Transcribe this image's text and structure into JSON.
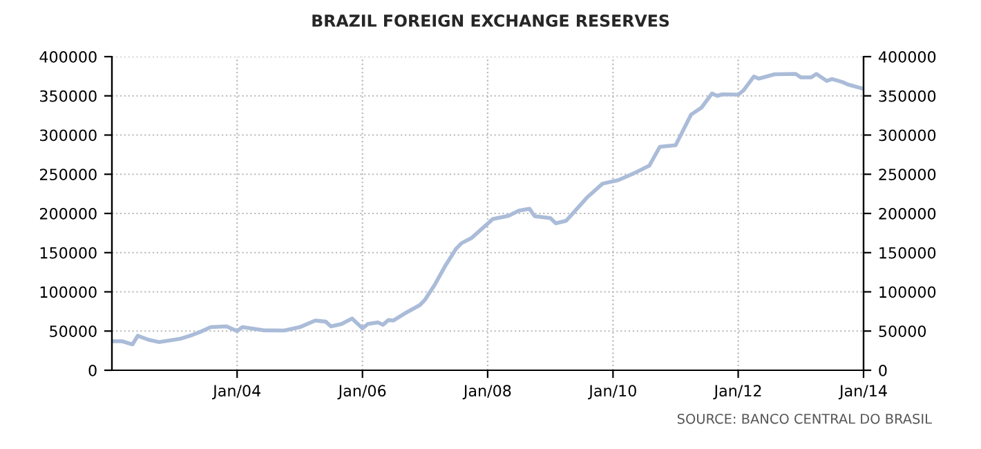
{
  "chart_data": {
    "type": "line",
    "title": "BRAZIL FOREIGN EXCHANGE RESERVES",
    "annotations": [
      "SOURCE: BANCO CENTRAL DO BRASIL"
    ],
    "x": [
      "2002-01",
      "2002-03",
      "2002-05",
      "2002-06",
      "2002-08",
      "2002-10",
      "2003-02",
      "2003-04",
      "2003-06",
      "2003-08",
      "2003-11",
      "2004-01",
      "2004-02",
      "2004-06",
      "2004-10",
      "2005-01",
      "2005-04",
      "2005-06",
      "2005-07",
      "2005-09",
      "2005-11",
      "2006-01",
      "2006-02",
      "2006-04",
      "2006-05",
      "2006-06",
      "2006-07",
      "2006-09",
      "2006-12",
      "2007-01",
      "2007-03",
      "2007-05",
      "2007-07",
      "2007-08",
      "2007-10",
      "2007-12",
      "2008-02",
      "2008-05",
      "2008-07",
      "2008-09",
      "2008-10",
      "2009-01",
      "2009-02",
      "2009-04",
      "2009-05",
      "2009-08",
      "2009-11",
      "2010-02",
      "2010-05",
      "2010-08",
      "2010-10",
      "2011-01",
      "2011-04",
      "2011-06",
      "2011-08",
      "2011-09",
      "2011-10",
      "2012-01",
      "2012-02",
      "2012-04",
      "2012-05",
      "2012-08",
      "2012-12",
      "2013-01",
      "2013-03",
      "2013-04",
      "2013-06",
      "2013-07",
      "2013-09",
      "2013-10",
      "2014-01"
    ],
    "series": [
      {
        "color": "#aabcd8",
        "values": [
          37000,
          37000,
          33000,
          44000,
          39000,
          36000,
          40000,
          44000,
          49000,
          55000,
          56000,
          50000,
          55000,
          51000,
          50600,
          55000,
          63500,
          62000,
          56000,
          59000,
          66000,
          53500,
          59000,
          61000,
          58000,
          64000,
          63500,
          72000,
          83000,
          90000,
          110000,
          134000,
          155000,
          162000,
          169000,
          181000,
          193000,
          197000,
          203500,
          206000,
          196500,
          194000,
          187500,
          190500,
          197500,
          220000,
          238000,
          242500,
          251000,
          261000,
          285000,
          287000,
          326000,
          335000,
          353000,
          350000,
          352000,
          351500,
          357000,
          374500,
          372000,
          377500,
          378000,
          373500,
          373500,
          378000,
          369000,
          371500,
          367500,
          364500,
          359000
        ]
      }
    ],
    "xlim": [
      "2002-01",
      "2014-01"
    ],
    "xticks": [
      {
        "value": "2004-01",
        "label": "Jan/04"
      },
      {
        "value": "2006-01",
        "label": "Jan/06"
      },
      {
        "value": "2008-01",
        "label": "Jan/08"
      },
      {
        "value": "2010-01",
        "label": "Jan/10"
      },
      {
        "value": "2012-01",
        "label": "Jan/12"
      },
      {
        "value": "2014-01",
        "label": "Jan/14"
      }
    ],
    "ylim": [
      0,
      400000
    ],
    "yticks": [
      0,
      50000,
      100000,
      150000,
      200000,
      250000,
      300000,
      350000,
      400000
    ],
    "y2lim": [
      0,
      400000
    ],
    "y2ticks": [
      0,
      50000,
      100000,
      150000,
      200000,
      250000,
      300000,
      350000,
      400000
    ],
    "grid": true,
    "line_style": "solid"
  }
}
